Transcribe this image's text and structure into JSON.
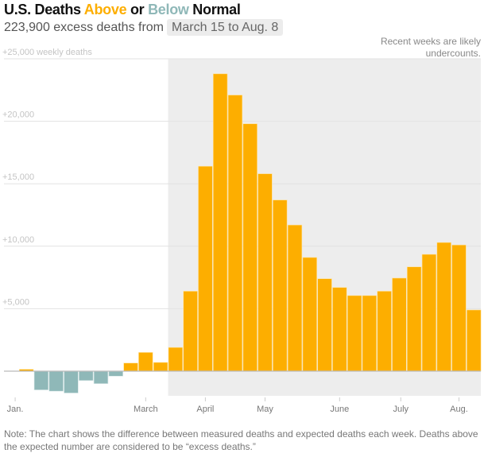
{
  "title": {
    "prefix": "U.S. Deaths ",
    "above": "Above",
    "mid": " or ",
    "below": "Below",
    "suffix": " Normal"
  },
  "subtitle": {
    "text": "223,900 excess deaths from",
    "range": "March 15 to Aug. 8"
  },
  "shade_note": "Recent weeks are likely undercounts.",
  "note": "Note: The chart shows the difference between measured deaths and expected deaths each week. Deaths above the expected number are considered to be “excess deaths.”",
  "colors": {
    "above": "#fdae00",
    "below": "#8fb8b8",
    "shade": "#ededed"
  },
  "chart_data": {
    "type": "bar",
    "ylabel": "weekly deaths",
    "ylim": [
      -2000,
      25000
    ],
    "yticks": [
      {
        "v": 25000,
        "label": "+25,000 weekly deaths"
      },
      {
        "v": 20000,
        "label": "+20,000"
      },
      {
        "v": 15000,
        "label": "+15,000"
      },
      {
        "v": 10000,
        "label": "+10,000"
      },
      {
        "v": 5000,
        "label": "+5,000"
      }
    ],
    "values": [
      0,
      150,
      -1500,
      -1600,
      -1750,
      -750,
      -1000,
      -400,
      650,
      1500,
      700,
      1900,
      6400,
      16400,
      23800,
      22100,
      19800,
      15800,
      13700,
      11700,
      9100,
      7400,
      6700,
      6050,
      6050,
      6400,
      7450,
      8350,
      9350,
      10300,
      10100,
      4900
    ],
    "shade_from_week": 11,
    "xticks": [
      {
        "w": 0.75,
        "label": "Jan."
      },
      {
        "w": 9.5,
        "label": "March"
      },
      {
        "w": 13.5,
        "label": "April"
      },
      {
        "w": 17.5,
        "label": "May"
      },
      {
        "w": 22.5,
        "label": "June"
      },
      {
        "w": 26.6,
        "label": "July"
      },
      {
        "w": 30.5,
        "label": "Aug."
      }
    ]
  }
}
